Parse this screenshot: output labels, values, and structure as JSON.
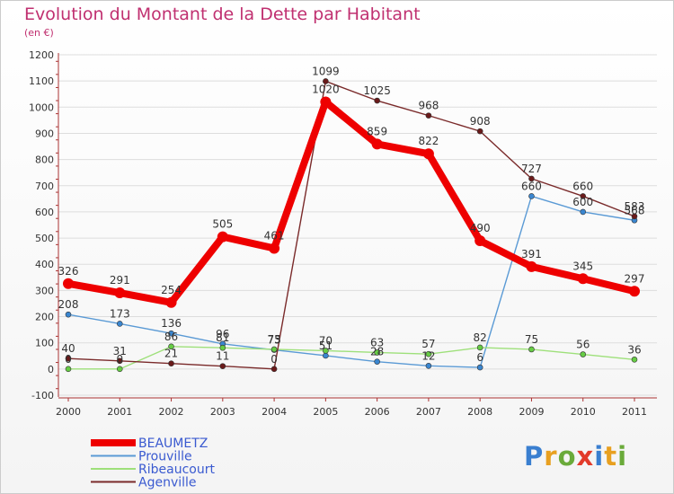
{
  "title": "Evolution du Montant de la Dette par Habitant",
  "subtitle": "(en €)",
  "logo": {
    "text": "Proxiti",
    "letter_colors": [
      "#3a7fd0",
      "#e8a020",
      "#6aaa3a",
      "#e23a2a",
      "#3a7fd0",
      "#e8a020",
      "#6aaa3a"
    ]
  },
  "chart_data": {
    "type": "line",
    "x": [
      "2000",
      "2001",
      "2002",
      "2003",
      "2004",
      "2005",
      "2006",
      "2007",
      "2008",
      "2009",
      "2010",
      "2011"
    ],
    "ylim": [
      -100,
      1200
    ],
    "yticks": [
      -100,
      0,
      100,
      200,
      300,
      400,
      500,
      600,
      700,
      800,
      900,
      1000,
      1100,
      1200
    ],
    "grid": "horizontal",
    "legend": "bottom-left",
    "series": [
      {
        "name": "BEAUMETZ",
        "color": "#ee0000",
        "point_color": "#ee0000",
        "values": [
          326,
          291,
          254,
          505,
          461,
          1020,
          859,
          822,
          490,
          391,
          345,
          297
        ],
        "labels": [
          "326",
          "291",
          "254",
          "505",
          "461",
          "1020",
          "859",
          "822",
          "490",
          "391",
          "345",
          "297"
        ]
      },
      {
        "name": "Prouville",
        "color": "#5a9ad5",
        "point_color": "#3a86d0",
        "values": [
          208,
          173,
          136,
          96,
          73,
          51,
          28,
          12,
          6,
          660,
          600,
          568
        ],
        "labels": [
          "208",
          "173",
          "136",
          "96",
          "73",
          "51",
          "28",
          "12",
          "6",
          "660",
          "600",
          "568"
        ]
      },
      {
        "name": "Ribeaucourt",
        "color": "#9ee07a",
        "point_color": "#66cc44",
        "values": [
          0,
          0,
          86,
          81,
          75,
          70,
          63,
          57,
          82,
          75,
          56,
          36
        ],
        "labels": [
          "0",
          "0",
          "86",
          "81",
          "75",
          "70",
          "63",
          "57",
          "82",
          "75",
          "56",
          "36"
        ]
      },
      {
        "name": "Agenville",
        "color": "#7a2a2a",
        "point_color": "#6a1a1a",
        "values": [
          40,
          31,
          21,
          11,
          0,
          1099,
          1025,
          968,
          908,
          727,
          660,
          583
        ],
        "labels": [
          "40",
          "31",
          "21",
          "11",
          "0",
          "1099",
          "1025",
          "968",
          "908",
          "727",
          "660",
          "583"
        ]
      }
    ]
  }
}
